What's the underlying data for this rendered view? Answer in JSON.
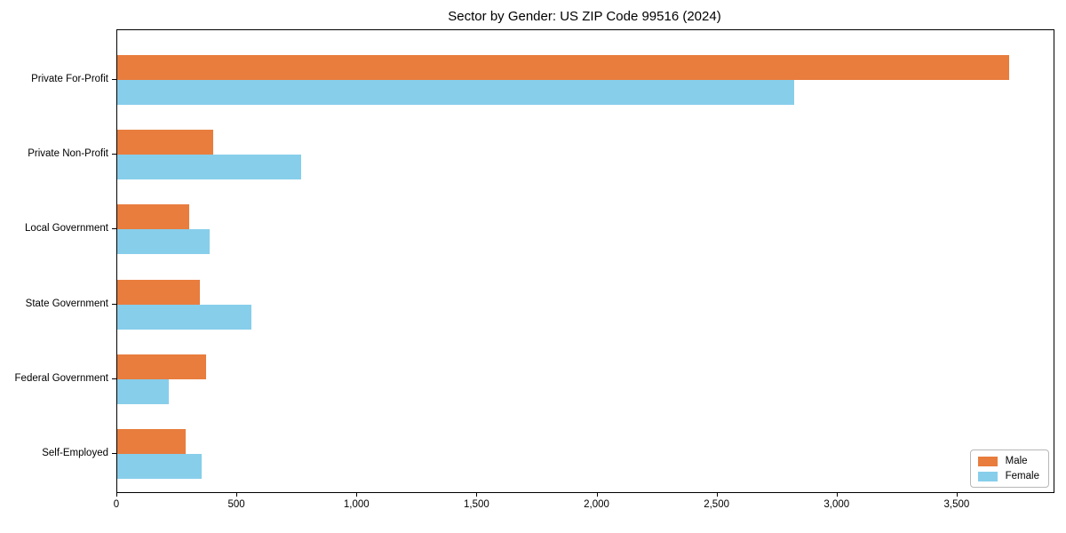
{
  "chart_data": {
    "type": "bar",
    "orientation": "horizontal",
    "title": "Sector by Gender: US ZIP Code 99516 (2024)",
    "categories": [
      "Private For-Profit",
      "Private Non-Profit",
      "Local Government",
      "State Government",
      "Federal Government",
      "Self-Employed"
    ],
    "series": [
      {
        "name": "Male",
        "color": "#e87d3e",
        "values": [
          3715,
          400,
          300,
          345,
          370,
          285
        ]
      },
      {
        "name": "Female",
        "color": "#87ceeb",
        "values": [
          2820,
          765,
          385,
          560,
          215,
          350
        ]
      }
    ],
    "xlabel": "",
    "ylabel": "",
    "xlim": [
      0,
      3900
    ],
    "xticks": [
      0,
      500,
      1000,
      1500,
      2000,
      2500,
      3000,
      3500
    ],
    "xtick_labels": [
      "0",
      "500",
      "1,000",
      "1,500",
      "2,000",
      "2,500",
      "3,000",
      "3,500"
    ],
    "grid": false,
    "legend": {
      "position": "lower right",
      "entries": [
        "Male",
        "Female"
      ]
    }
  }
}
